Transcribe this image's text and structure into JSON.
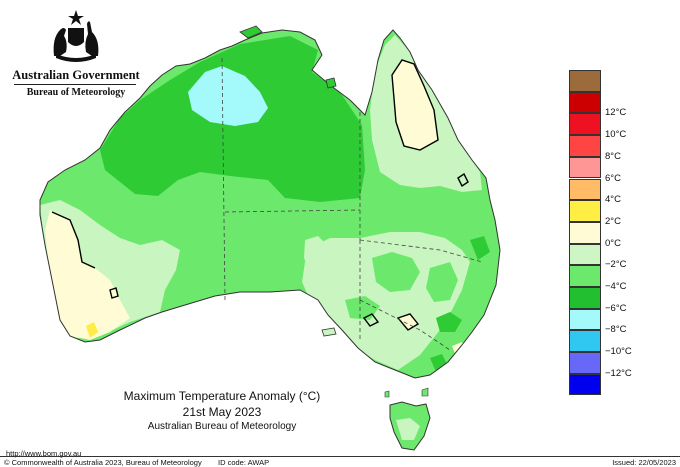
{
  "header": {
    "government": "Australian Government",
    "agency": "Bureau of Meteorology"
  },
  "map": {
    "title": "Maximum Temperature Anomaly (°C)",
    "date": "21st May 2023",
    "source": "Australian Bureau of Meteorology",
    "palette": {
      "land_default": "#6ce86c",
      "dark_green": "#2fcb35",
      "pale_green": "#c8f5c0",
      "cream": "#fffbd4",
      "cyan": "#a4f9fb",
      "yellow": "#ffed47",
      "outline": "#333333",
      "contour": "#000000"
    }
  },
  "legend": {
    "bins": [
      {
        "label": "",
        "color": "#9c6b3c"
      },
      {
        "label": "12°C",
        "color": "#cc0000"
      },
      {
        "label": "10°C",
        "color": "#ee1122"
      },
      {
        "label": "8°C",
        "color": "#ff4444"
      },
      {
        "label": "6°C",
        "color": "#ff9696"
      },
      {
        "label": "4°C",
        "color": "#ffbb66"
      },
      {
        "label": "2°C",
        "color": "#ffee44"
      },
      {
        "label": "0°C",
        "color": "#fffbd4"
      },
      {
        "label": "−2°C",
        "color": "#cdf6c4"
      },
      {
        "label": "−4°C",
        "color": "#6ce86c"
      },
      {
        "label": "−6°C",
        "color": "#22c030"
      },
      {
        "label": "−8°C",
        "color": "#a4f9fb"
      },
      {
        "label": "−10°C",
        "color": "#30c8f0"
      },
      {
        "label": "−12°C",
        "color": "#6868f8"
      },
      {
        "label": "",
        "color": "#0000ee"
      }
    ]
  },
  "footer": {
    "url": "http://www.bom.gov.au",
    "copyright": "© Commonwealth of Australia 2023, Bureau of Meteorology",
    "id_code": "ID code: AWAP",
    "issued": "Issued: 22/05/2023"
  }
}
